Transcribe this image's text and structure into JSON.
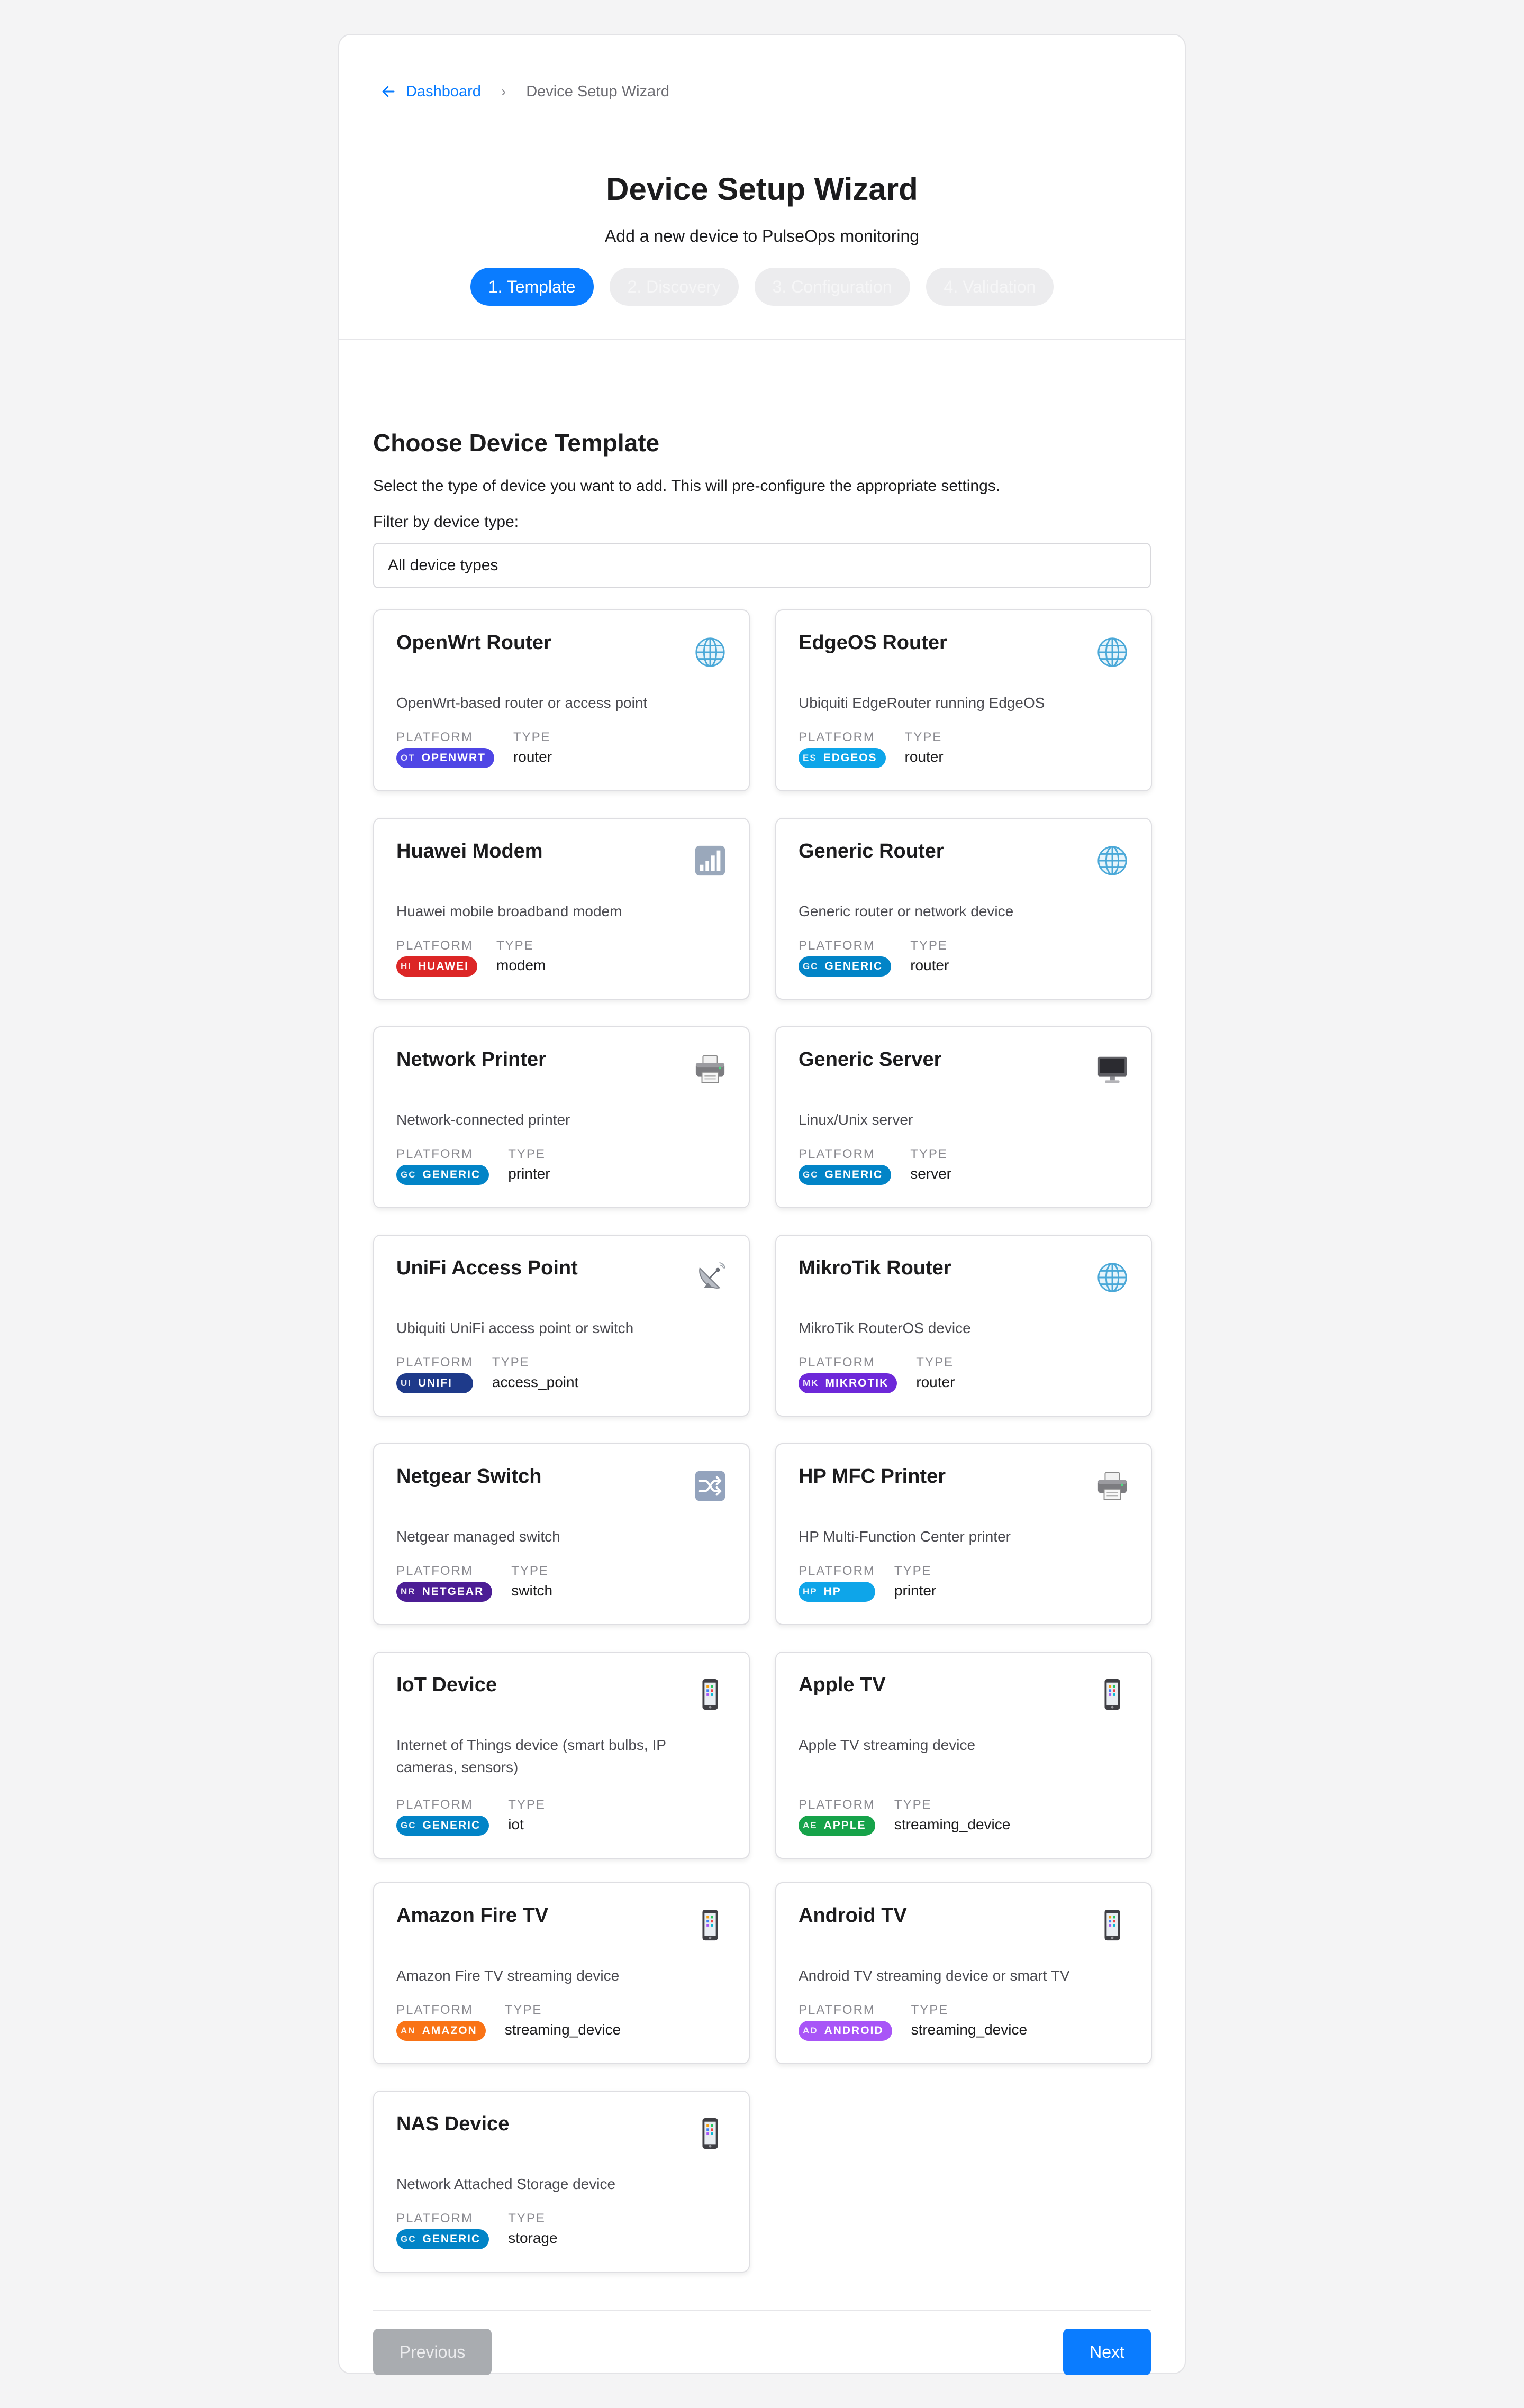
{
  "breadcrumb": {
    "back_label": "Dashboard",
    "separator": "›",
    "current": "Device Setup Wizard"
  },
  "header": {
    "title": "Device Setup Wizard",
    "subtitle": "Add a new device to PulseOps monitoring"
  },
  "steps": [
    {
      "label": "1. Template",
      "active": true
    },
    {
      "label": "2. Discovery",
      "active": false
    },
    {
      "label": "3. Configuration",
      "active": false
    },
    {
      "label": "4. Validation",
      "active": false
    }
  ],
  "section": {
    "title": "Choose Device Template",
    "description": "Select the type of device you want to add. This will pre-configure the appropriate settings.",
    "filter_label": "Filter by device type:",
    "filter_value": "All device types"
  },
  "meta_labels": {
    "platform": "PLATFORM",
    "type": "TYPE"
  },
  "templates": [
    {
      "name": "OpenWrt Router",
      "description": "OpenWrt-based router or access point",
      "platform": "OPENWRT",
      "initials": "OT",
      "type": "router",
      "icon": "globe-icon",
      "color": "#4f46e5"
    },
    {
      "name": "EdgeOS Router",
      "description": "Ubiquiti EdgeRouter running EdgeOS",
      "platform": "EDGEOS",
      "initials": "ES",
      "type": "router",
      "icon": "globe-icon",
      "color": "#0ea5e9"
    },
    {
      "name": "Huawei Modem",
      "description": "Huawei mobile broadband modem",
      "platform": "HUAWEI",
      "initials": "HI",
      "type": "modem",
      "icon": "signal-bars-icon",
      "color": "#dc2626"
    },
    {
      "name": "Generic Router",
      "description": "Generic router or network device",
      "platform": "GENERIC",
      "initials": "GC",
      "type": "router",
      "icon": "globe-icon",
      "color": "#0284c7"
    },
    {
      "name": "Network Printer",
      "description": "Network-connected printer",
      "platform": "GENERIC",
      "initials": "GC",
      "type": "printer",
      "icon": "printer-icon",
      "color": "#0284c7"
    },
    {
      "name": "Generic Server",
      "description": "Linux/Unix server",
      "platform": "GENERIC",
      "initials": "GC",
      "type": "server",
      "icon": "monitor-icon",
      "color": "#0284c7"
    },
    {
      "name": "UniFi Access Point",
      "description": "Ubiquiti UniFi access point or switch",
      "platform": "UNIFI",
      "initials": "UI",
      "type": "access_point",
      "icon": "satellite-dish-icon",
      "color": "#1e3a8a"
    },
    {
      "name": "MikroTik Router",
      "description": "MikroTik RouterOS device",
      "platform": "MIKROTIK",
      "initials": "MK",
      "type": "router",
      "icon": "globe-icon",
      "color": "#6d28d9"
    },
    {
      "name": "Netgear Switch",
      "description": "Netgear managed switch",
      "platform": "NETGEAR",
      "initials": "NR",
      "type": "switch",
      "icon": "shuffle-icon",
      "color": "#4c1d95"
    },
    {
      "name": "HP MFC Printer",
      "description": "HP Multi-Function Center printer",
      "platform": "HP",
      "initials": "HP",
      "type": "printer",
      "icon": "printer-icon",
      "color": "#0ea5e9"
    },
    {
      "name": "IoT Device",
      "description": "Internet of Things device (smart bulbs, IP cameras, sensors)",
      "platform": "GENERIC",
      "initials": "GC",
      "type": "iot",
      "icon": "mobile-phone-icon",
      "color": "#0284c7"
    },
    {
      "name": "Apple TV",
      "description": "Apple TV streaming device",
      "platform": "APPLE",
      "initials": "AE",
      "type": "streaming_device",
      "icon": "mobile-phone-icon",
      "color": "#16a34a"
    },
    {
      "name": "Amazon Fire TV",
      "description": "Amazon Fire TV streaming device",
      "platform": "AMAZON",
      "initials": "AN",
      "type": "streaming_device",
      "icon": "mobile-phone-icon",
      "color": "#f97316"
    },
    {
      "name": "Android TV",
      "description": "Android TV streaming device or smart TV",
      "platform": "ANDROID",
      "initials": "AD",
      "type": "streaming_device",
      "icon": "mobile-phone-icon",
      "color": "#a855f7"
    },
    {
      "name": "NAS Device",
      "description": "Network Attached Storage device",
      "platform": "GENERIC",
      "initials": "GC",
      "type": "storage",
      "icon": "mobile-phone-icon",
      "color": "#0284c7"
    }
  ],
  "footer": {
    "previous_label": "Previous",
    "next_label": "Next"
  },
  "colors": {
    "accent": "#0a7cff",
    "disabled_button": "#a9acb0"
  }
}
